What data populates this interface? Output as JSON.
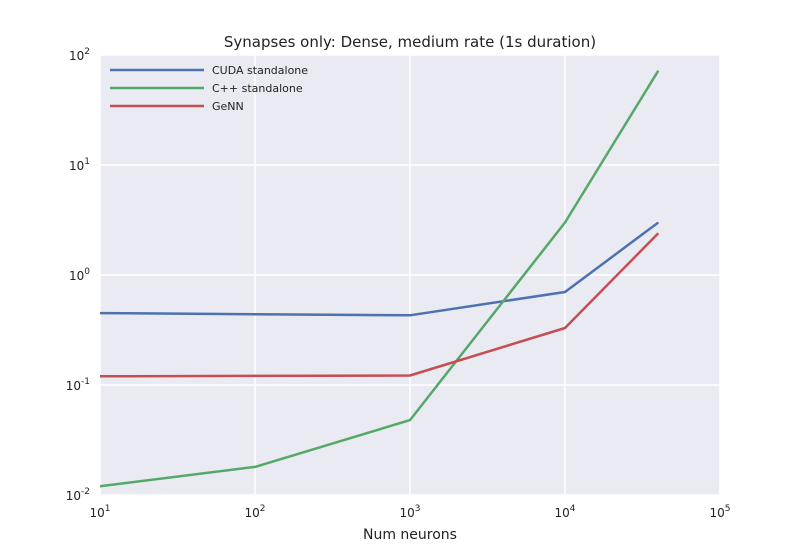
{
  "chart_data": {
    "type": "line",
    "title": "Synapses only: Dense, medium rate (1s duration)",
    "xlabel": "Num neurons",
    "ylabel": "",
    "x_scale": "log",
    "y_scale": "log",
    "xlim": [
      10,
      100000
    ],
    "ylim": [
      0.01,
      100
    ],
    "x_ticks": [
      {
        "base": "10",
        "exp": "1"
      },
      {
        "base": "10",
        "exp": "2"
      },
      {
        "base": "10",
        "exp": "3"
      },
      {
        "base": "10",
        "exp": "4"
      },
      {
        "base": "10",
        "exp": "5"
      }
    ],
    "y_ticks": [
      {
        "base": "10",
        "exp": "-2"
      },
      {
        "base": "10",
        "exp": "-1"
      },
      {
        "base": "10",
        "exp": "0"
      },
      {
        "base": "10",
        "exp": "1"
      },
      {
        "base": "10",
        "exp": "2"
      }
    ],
    "grid": true,
    "legend_position": "top-left",
    "background_color": "#EAEAF2",
    "x": [
      10,
      100,
      1000,
      10000,
      40000
    ],
    "series": [
      {
        "name": "CUDA standalone",
        "color": "#4C72B0",
        "values": [
          0.45,
          0.44,
          0.43,
          0.7,
          3.0
        ]
      },
      {
        "name": "C++ standalone",
        "color": "#55A868",
        "values": [
          0.012,
          0.018,
          0.048,
          3.0,
          72
        ]
      },
      {
        "name": "GeNN",
        "color": "#C44E52",
        "values": [
          0.12,
          0.121,
          0.122,
          0.33,
          2.4
        ]
      }
    ]
  }
}
